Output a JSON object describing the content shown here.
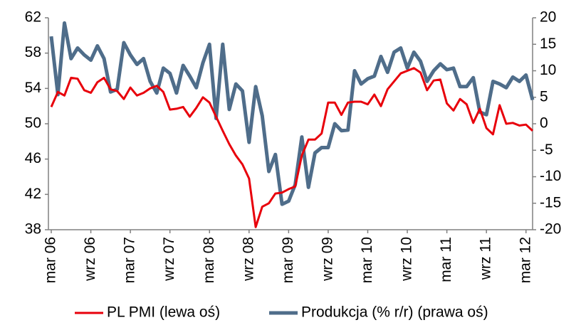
{
  "chart_data": {
    "type": "line",
    "categories": [
      "mar 06",
      null,
      null,
      null,
      null,
      null,
      "wrz 06",
      null,
      null,
      null,
      null,
      null,
      "mar 07",
      null,
      null,
      null,
      null,
      null,
      "wrz 07",
      null,
      null,
      null,
      null,
      null,
      "mar 08",
      null,
      null,
      null,
      null,
      null,
      "wrz 08",
      null,
      null,
      null,
      null,
      null,
      "mar 09",
      null,
      null,
      null,
      null,
      null,
      "wrz 09",
      null,
      null,
      null,
      null,
      null,
      "mar 10",
      null,
      null,
      null,
      null,
      null,
      "wrz 10",
      null,
      null,
      null,
      null,
      null,
      "mar 11",
      null,
      null,
      null,
      null,
      null,
      "wrz 11",
      null,
      null,
      null,
      null,
      null,
      "mar 12",
      null
    ],
    "series": [
      {
        "name": "PL PMI (lewa oś)",
        "color": "#e8000b",
        "axis": "y",
        "values": [
          51.9,
          53.6,
          53.2,
          55.2,
          55.1,
          53.8,
          53.5,
          54.7,
          55.2,
          53.9,
          53.7,
          52.8,
          54.1,
          53.2,
          53.5,
          54.0,
          54.3,
          53.6,
          51.6,
          51.7,
          51.9,
          50.8,
          51.8,
          53.0,
          52.4,
          50.8,
          49.2,
          47.7,
          46.4,
          45.4,
          43.8,
          38.3,
          40.6,
          41.0,
          42.1,
          42.2,
          42.6,
          42.9,
          46.4,
          48.2,
          48.2,
          48.9,
          52.4,
          52.4,
          51.0,
          52.4,
          52.5,
          52.5,
          52.2,
          53.3,
          52.0,
          53.9,
          54.8,
          55.7,
          56.0,
          56.3,
          55.8,
          53.8,
          54.9,
          55.0,
          52.3,
          51.5,
          52.8,
          52.2,
          50.1,
          51.7,
          49.5,
          48.8,
          52.1,
          50.0,
          50.1,
          49.8,
          49.9,
          49.2
        ]
      },
      {
        "name": "Produkcja (% r/r) (prawa oś)",
        "color": "#4f6d8a",
        "axis": "y2",
        "values": [
          16.5,
          5.5,
          19,
          12.3,
          14.3,
          13,
          12,
          14.7,
          12.3,
          6,
          6.5,
          15.3,
          13,
          11.2,
          12.3,
          8,
          5.8,
          10.5,
          9.5,
          5.8,
          11,
          9,
          6.8,
          11.5,
          15,
          1,
          15,
          2.7,
          7.5,
          6.2,
          -3.5,
          7,
          1.5,
          -9,
          -5.8,
          -15.2,
          -14.6,
          -11.5,
          -2.5,
          -12,
          -5.5,
          -4.5,
          -4.5,
          0,
          -1.3,
          -1.2,
          10,
          7.5,
          8.5,
          9,
          12.7,
          9.7,
          13.5,
          14.3,
          10.5,
          13.5,
          11.8,
          8,
          10,
          11.3,
          10.2,
          10.5,
          7,
          7,
          8.7,
          2.2,
          1.7,
          8,
          7.5,
          6.8,
          8.8,
          8,
          9.2,
          4.5
        ]
      }
    ],
    "ylim": [
      38,
      62
    ],
    "yticks": [
      38,
      42,
      46,
      50,
      54,
      58,
      62
    ],
    "y2lim": [
      -20,
      20
    ],
    "y2ticks": [
      -20,
      -15,
      -10,
      -5,
      0,
      5,
      10,
      15,
      20
    ],
    "grid": false
  }
}
